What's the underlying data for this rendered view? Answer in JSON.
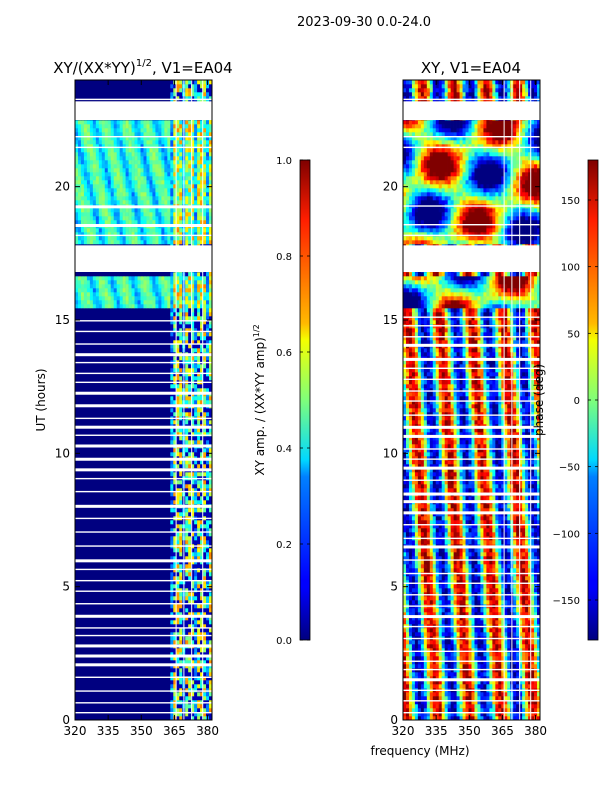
{
  "figure": {
    "suptitle": "2023-09-30 0.0-24.0",
    "shared_xlabel": "frequency (MHz)"
  },
  "chart_data": [
    {
      "type": "heatmap",
      "title": "XY/(XX*YY)",
      "title_superscript": "1/2",
      "title_suffix": ", V1=EA04",
      "xlabel": "",
      "ylabel": "UT (hours)",
      "xlim": [
        320,
        382
      ],
      "ylim": [
        0,
        24
      ],
      "xticks": [
        320,
        335,
        350,
        365,
        380
      ],
      "yticks": [
        0,
        5,
        10,
        15,
        20
      ],
      "colorbar": {
        "label": "XY amp. / (XX*YY amp)",
        "label_superscript": "1/2",
        "range": [
          0.0,
          1.0
        ],
        "ticks": [
          "0.0",
          "0.2",
          "0.4",
          "0.6",
          "0.8",
          "1.0"
        ]
      },
      "description_values": {
        "background_level": 0.0,
        "high_band_freq_start_mhz": 363,
        "active_period_hours": [
          15.5,
          22.5
        ]
      }
    },
    {
      "type": "heatmap",
      "title": "XY, V1=EA04",
      "xlabel": "frequency (MHz)",
      "ylabel": "",
      "xlim": [
        320,
        382
      ],
      "ylim": [
        0,
        24
      ],
      "xticks": [
        320,
        335,
        350,
        365,
        380
      ],
      "yticks": [
        0,
        5,
        10,
        15,
        20
      ],
      "colorbar": {
        "label": "phase (deg)",
        "range": [
          -180,
          180
        ],
        "ticks": [
          "−150",
          "−100",
          "−50",
          "0",
          "50",
          "100",
          "150"
        ]
      }
    }
  ],
  "colors": {
    "jet_low": "#00007f",
    "jet_high": "#7f0000",
    "gap": "#ffffff"
  }
}
